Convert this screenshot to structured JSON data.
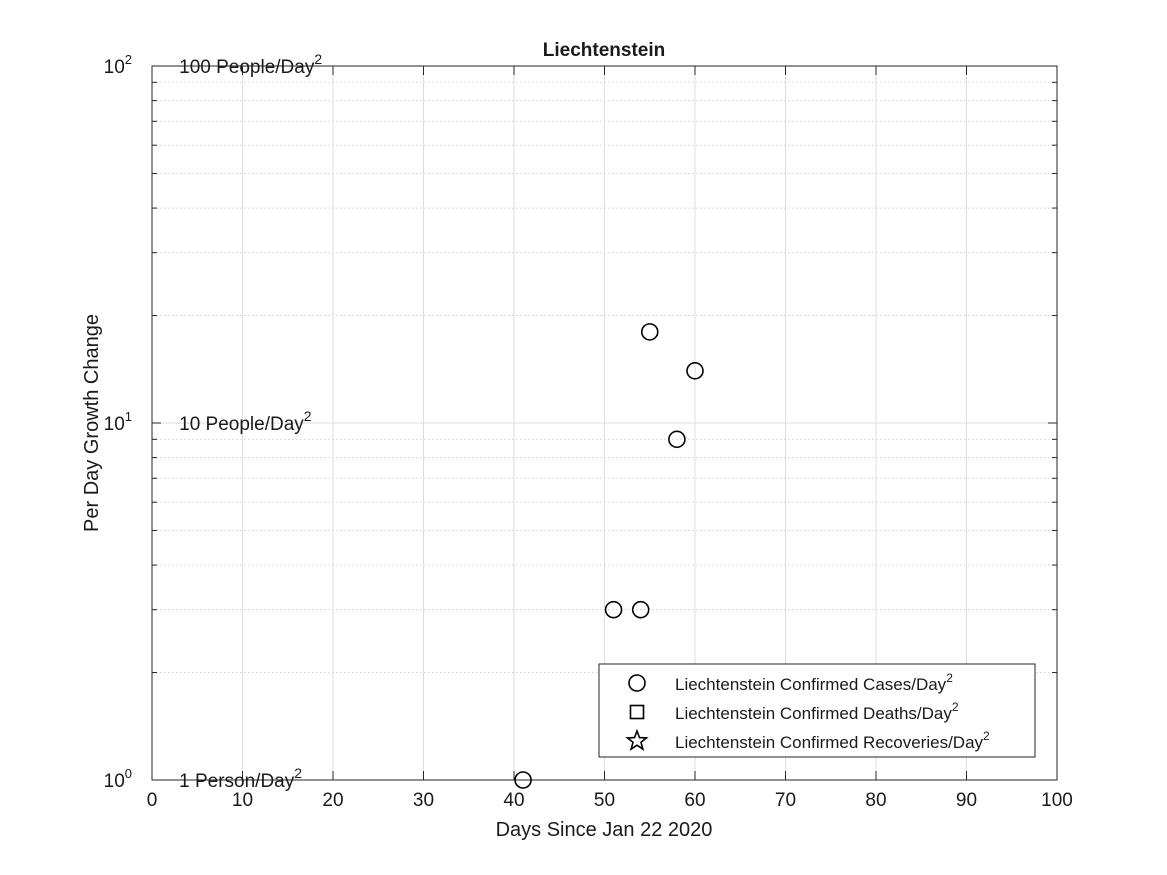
{
  "chart_data": {
    "type": "scatter",
    "title": "Liechtenstein",
    "xlabel": "Days Since Jan 22 2020",
    "ylabel": "Per Day Growth Change",
    "xlim": [
      0,
      100
    ],
    "ylim": [
      1,
      100
    ],
    "yscale": "log",
    "grid": true,
    "minor_grid": true,
    "x_ticks": [
      "0",
      "10",
      "20",
      "30",
      "40",
      "50",
      "60",
      "70",
      "80",
      "90",
      "100"
    ],
    "y_ticks": [
      {
        "base": "10",
        "exp": "0",
        "value": 1
      },
      {
        "base": "10",
        "exp": "1",
        "value": 10
      },
      {
        "base": "10",
        "exp": "2",
        "value": 100
      }
    ],
    "annotations": [
      {
        "text": "100 People/Day",
        "sup": "2",
        "x": 3,
        "y": 100
      },
      {
        "text": "10 People/Day",
        "sup": "2",
        "x": 3,
        "y": 10
      },
      {
        "text": "1 Person/Day",
        "sup": "2",
        "x": 3,
        "y": 1
      }
    ],
    "series": [
      {
        "name": "Liechtenstein Confirmed Cases/Day",
        "name_sup": "2",
        "marker": "circle",
        "points": [
          {
            "x": 41,
            "y": 1
          },
          {
            "x": 51,
            "y": 3
          },
          {
            "x": 54,
            "y": 3
          },
          {
            "x": 55,
            "y": 18
          },
          {
            "x": 58,
            "y": 9
          },
          {
            "x": 60,
            "y": 14
          }
        ]
      },
      {
        "name": "Liechtenstein Confirmed Deaths/Day",
        "name_sup": "2",
        "marker": "square",
        "points": []
      },
      {
        "name": "Liechtenstein Confirmed Recoveries/Day",
        "name_sup": "2",
        "marker": "star",
        "points": []
      }
    ],
    "legend_position": "bottom-right"
  }
}
